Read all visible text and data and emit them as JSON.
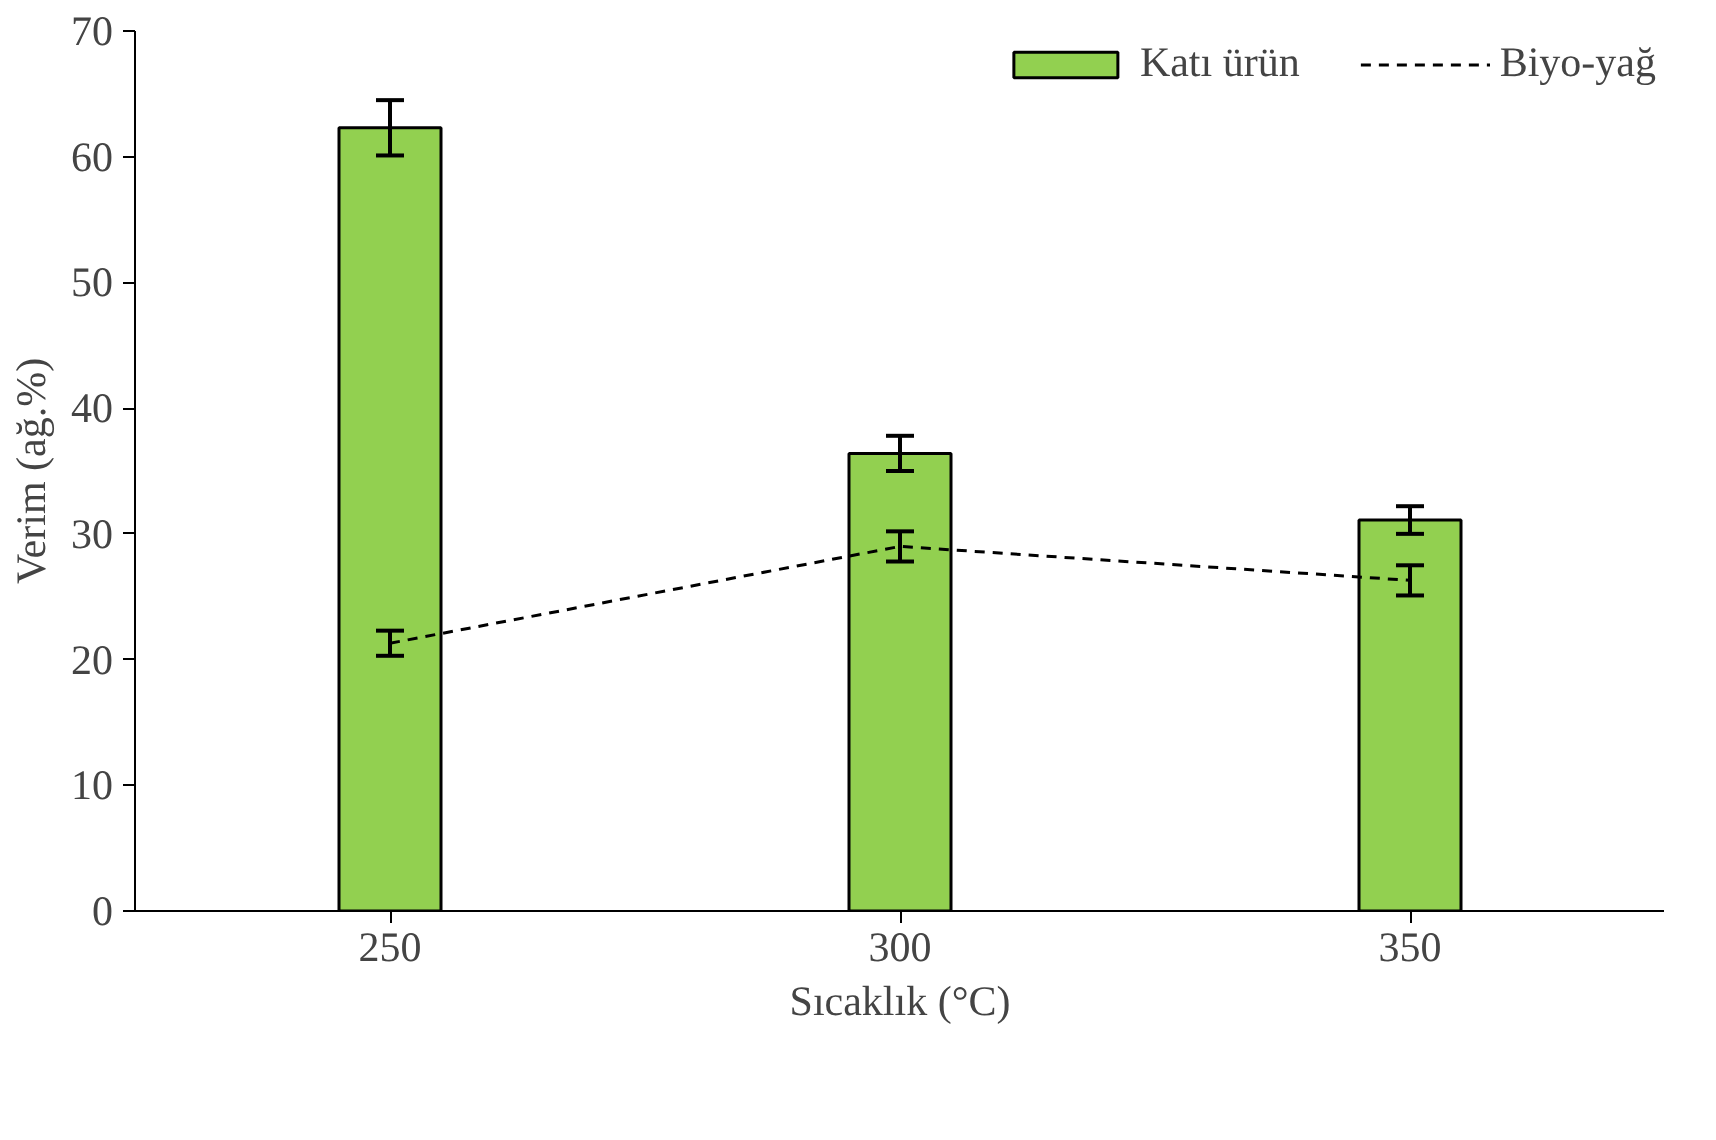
{
  "chart_data": {
    "type": "bar",
    "xlabel": "Sıcaklık (°C)",
    "ylabel": "Verim (ağ.%)",
    "categories": [
      "250",
      "300",
      "350"
    ],
    "series": [
      {
        "name": "Katı ürün",
        "color": "#92d050",
        "values": [
          62.3,
          36.4,
          31.1
        ],
        "errors": [
          2.2,
          1.4,
          1.1
        ]
      },
      {
        "name": "Biyo-yağ",
        "type": "line",
        "color": "#000000",
        "line_style": "dashed",
        "values": [
          21.3,
          29.0,
          26.3
        ],
        "errors": [
          1.0,
          1.2,
          1.2
        ]
      }
    ],
    "ylim": [
      0,
      70
    ],
    "yticks": [
      0,
      10,
      20,
      30,
      40,
      50,
      60,
      70
    ],
    "grid": false,
    "legend": "top right",
    "marker": "none"
  }
}
